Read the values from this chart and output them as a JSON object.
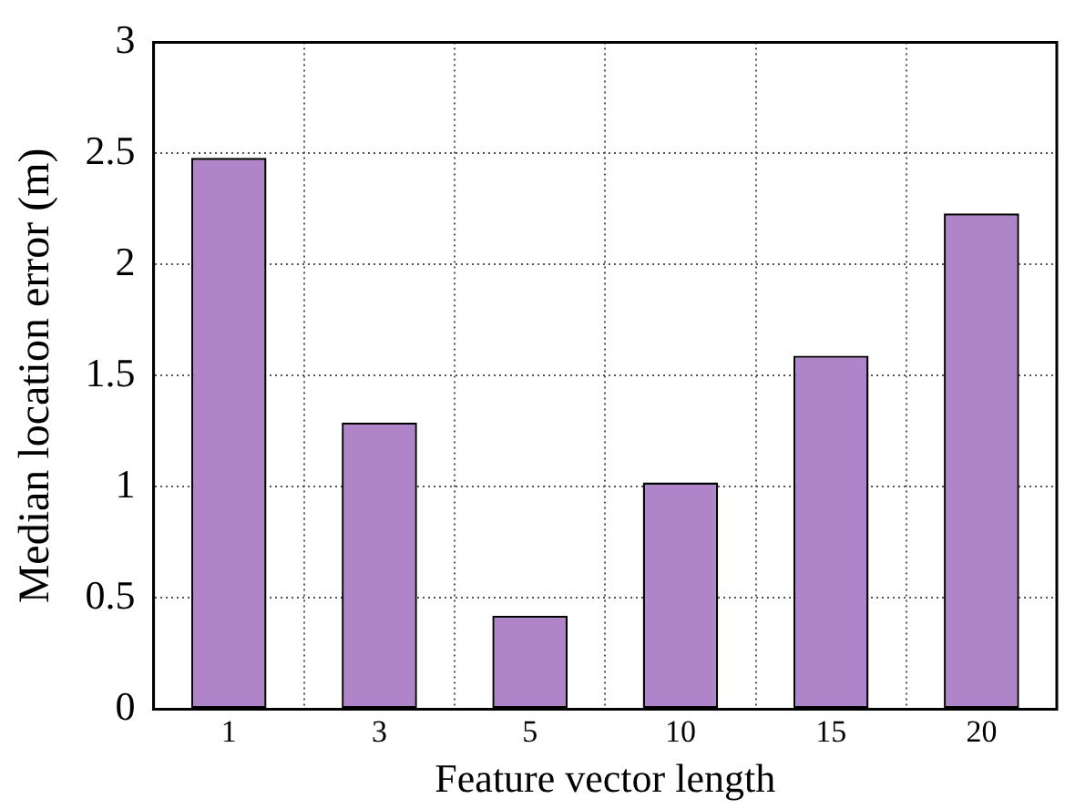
{
  "chart_data": {
    "type": "bar",
    "xlabel": "Feature vector length",
    "ylabel": "Median location error (m)",
    "categories": [
      "1",
      "3",
      "5",
      "10",
      "15",
      "20"
    ],
    "values": [
      2.48,
      1.29,
      0.42,
      1.02,
      1.59,
      2.23
    ],
    "color": "#b084c8",
    "ylim": [
      0,
      3
    ],
    "yticks": [
      0,
      0.5,
      1,
      1.5,
      2,
      2.5,
      3
    ],
    "grid": true
  }
}
